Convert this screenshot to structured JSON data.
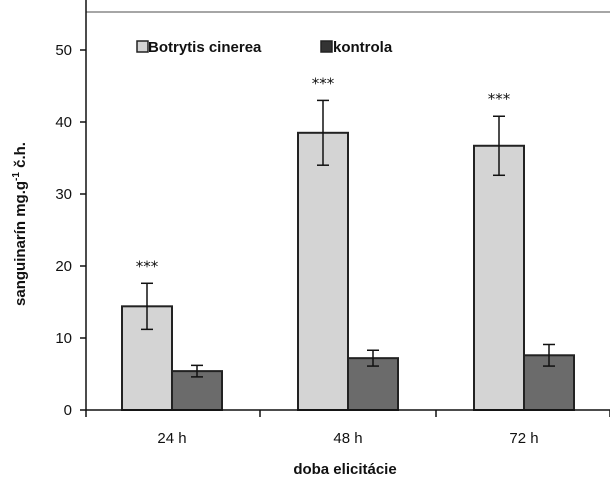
{
  "chart_data": {
    "type": "bar",
    "categories": [
      "24 h",
      "48 h",
      "72 h"
    ],
    "series": [
      {
        "name": "Botrytis cinerea",
        "color": "#d4d4d4",
        "values": [
          14.4,
          38.5,
          36.7
        ],
        "errors": [
          3.2,
          4.5,
          4.1
        ],
        "significance": [
          "***",
          "***",
          "***"
        ]
      },
      {
        "name": "kontrola",
        "color": "#6b6b6b",
        "values": [
          5.4,
          7.2,
          7.6
        ],
        "errors": [
          0.8,
          1.1,
          1.5
        ],
        "significance": [
          "",
          "",
          ""
        ]
      }
    ],
    "xlabel": "doba elicitácie",
    "ylabel": "sanguinarín  mg.g",
    "ylabel_sup": "-1",
    "ylabel_suffix": " č.h.",
    "ylim": [
      0,
      55
    ],
    "yticks": [
      0,
      10,
      20,
      30,
      40,
      50
    ],
    "grid": false,
    "legend_position": "top-left"
  }
}
